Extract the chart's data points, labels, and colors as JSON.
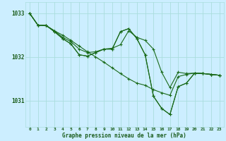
{
  "bg_color": "#cceeff",
  "plot_bg_color": "#cceeff",
  "grid_color": "#aadddd",
  "line_color": "#1a6b1a",
  "xlabel": "Graphe pression niveau de la mer (hPa)",
  "ylabel_ticks": [
    1031,
    1032,
    1033
  ],
  "xlim": [
    -0.5,
    23.5
  ],
  "ylim": [
    1030.4,
    1033.25
  ],
  "xticks": [
    0,
    1,
    2,
    3,
    4,
    5,
    6,
    7,
    8,
    9,
    10,
    11,
    12,
    13,
    14,
    15,
    16,
    17,
    18,
    19,
    20,
    21,
    22,
    23
  ],
  "series": [
    [
      1033.0,
      1032.73,
      1032.72,
      1032.6,
      1032.5,
      1032.38,
      1032.25,
      1032.12,
      1032.0,
      1031.88,
      1031.75,
      1031.62,
      1031.5,
      1031.4,
      1031.35,
      1031.25,
      1031.18,
      1031.12,
      1031.55,
      1031.6,
      1031.63,
      1031.62,
      1031.6,
      1031.58
    ],
    [
      1033.0,
      1032.73,
      1032.72,
      1032.6,
      1032.45,
      1032.35,
      1032.18,
      1032.1,
      1032.12,
      1032.18,
      1032.2,
      1032.28,
      1032.6,
      1032.45,
      1032.38,
      1032.18,
      1031.65,
      1031.3,
      1031.65,
      1031.62,
      1031.63,
      1031.62,
      1031.6,
      1031.58
    ],
    [
      1033.0,
      1032.73,
      1032.72,
      1032.58,
      1032.42,
      1032.3,
      1032.05,
      1032.02,
      1032.1,
      1032.18,
      1032.18,
      1032.58,
      1032.65,
      1032.42,
      1032.05,
      1031.1,
      1030.82,
      1030.68,
      1031.32,
      1031.4,
      1031.63,
      1031.62,
      1031.6,
      1031.58
    ],
    [
      1033.0,
      1032.73,
      1032.72,
      1032.58,
      1032.42,
      1032.3,
      1032.05,
      1032.02,
      1032.1,
      1032.18,
      1032.18,
      1032.58,
      1032.65,
      1032.42,
      1032.05,
      1031.1,
      1030.82,
      1030.68,
      1031.32,
      1031.4,
      1031.63,
      1031.62,
      1031.6,
      1031.58
    ]
  ]
}
